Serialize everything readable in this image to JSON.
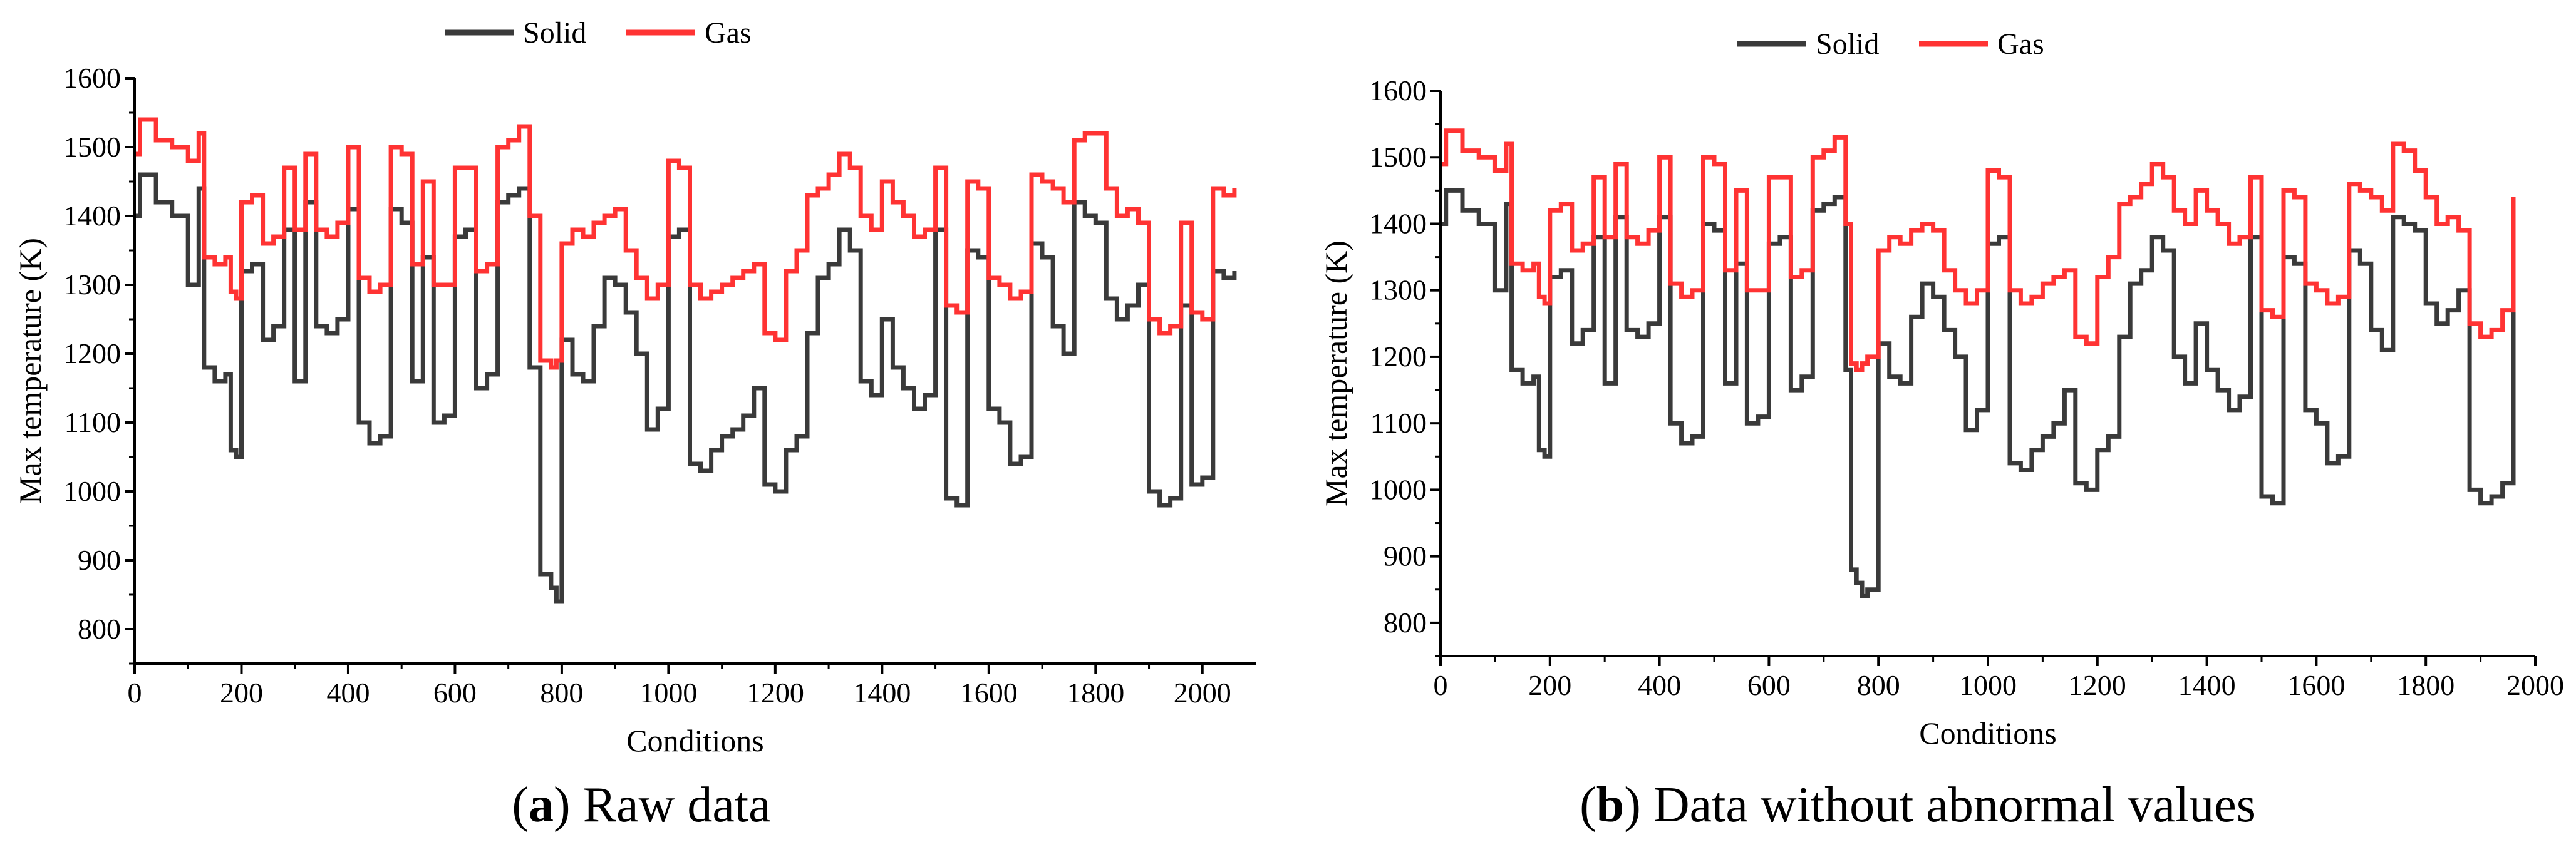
{
  "figure": {
    "captions": [
      {
        "open": "(",
        "letter": "a",
        "close": ")",
        "text": " Raw data"
      },
      {
        "open": "(",
        "letter": "b",
        "close": ")",
        "text": " Data without abnormal values"
      }
    ]
  },
  "colors": {
    "solid": "#3a3a3a",
    "gas": "#ff3333",
    "axis": "#000000"
  },
  "chart_data": [
    {
      "type": "line",
      "panel": "a",
      "title": "",
      "xlabel": "Conditions",
      "ylabel": "Max temperature (K)",
      "xlim": [
        0,
        2100
      ],
      "ylim": [
        750,
        1600
      ],
      "xticks": [
        0,
        200,
        400,
        600,
        800,
        1000,
        1200,
        1400,
        1600,
        1800,
        2000
      ],
      "yticks": [
        800,
        900,
        1000,
        1100,
        1200,
        1300,
        1400,
        1500,
        1600
      ],
      "legend": {
        "placement": "top-center",
        "entries": [
          "Solid",
          "Gas"
        ]
      },
      "series": [
        {
          "name": "Solid",
          "color": "#3a3a3a",
          "x": [
            0,
            10,
            40,
            70,
            100,
            120,
            130,
            150,
            170,
            180,
            190,
            200,
            220,
            240,
            260,
            280,
            300,
            320,
            340,
            360,
            380,
            400,
            420,
            440,
            460,
            480,
            500,
            520,
            540,
            560,
            580,
            600,
            620,
            640,
            660,
            680,
            700,
            720,
            740,
            760,
            780,
            790,
            800,
            820,
            840,
            860,
            880,
            900,
            920,
            940,
            960,
            980,
            1000,
            1020,
            1040,
            1060,
            1080,
            1100,
            1120,
            1140,
            1160,
            1180,
            1200,
            1220,
            1240,
            1260,
            1280,
            1300,
            1320,
            1340,
            1360,
            1380,
            1400,
            1420,
            1440,
            1460,
            1480,
            1500,
            1520,
            1540,
            1560,
            1580,
            1600,
            1620,
            1640,
            1660,
            1680,
            1700,
            1720,
            1740,
            1760,
            1780,
            1800,
            1820,
            1840,
            1860,
            1880,
            1900,
            1920,
            1940,
            1960,
            1980,
            2000,
            2020,
            2040,
            2060
          ],
          "values": [
            1400,
            1460,
            1420,
            1400,
            1300,
            1440,
            1180,
            1160,
            1170,
            1060,
            1050,
            1320,
            1330,
            1220,
            1240,
            1380,
            1160,
            1420,
            1240,
            1230,
            1250,
            1410,
            1100,
            1070,
            1080,
            1410,
            1390,
            1160,
            1340,
            1100,
            1110,
            1370,
            1380,
            1150,
            1170,
            1420,
            1430,
            1440,
            1180,
            880,
            860,
            840,
            1220,
            1170,
            1160,
            1240,
            1310,
            1300,
            1260,
            1200,
            1090,
            1120,
            1370,
            1380,
            1040,
            1030,
            1060,
            1080,
            1090,
            1110,
            1150,
            1010,
            1000,
            1060,
            1080,
            1230,
            1310,
            1330,
            1380,
            1350,
            1160,
            1140,
            1250,
            1180,
            1150,
            1120,
            1140,
            1380,
            990,
            980,
            1350,
            1340,
            1120,
            1100,
            1040,
            1050,
            1360,
            1340,
            1240,
            1200,
            1420,
            1400,
            1390,
            1280,
            1250,
            1270,
            1300,
            1000,
            980,
            990,
            1270,
            1010,
            1020,
            1320,
            1310,
            1320
          ]
        },
        {
          "name": "Gas",
          "color": "#ff3333",
          "x": [
            0,
            10,
            40,
            70,
            100,
            120,
            130,
            150,
            170,
            180,
            190,
            200,
            220,
            240,
            260,
            280,
            300,
            320,
            340,
            360,
            380,
            400,
            420,
            440,
            460,
            480,
            500,
            520,
            540,
            560,
            580,
            600,
            620,
            640,
            660,
            680,
            700,
            720,
            740,
            760,
            780,
            790,
            800,
            820,
            840,
            860,
            880,
            900,
            920,
            940,
            960,
            980,
            1000,
            1020,
            1040,
            1060,
            1080,
            1100,
            1120,
            1140,
            1160,
            1180,
            1200,
            1220,
            1240,
            1260,
            1280,
            1300,
            1320,
            1340,
            1360,
            1380,
            1400,
            1420,
            1440,
            1460,
            1480,
            1500,
            1520,
            1540,
            1560,
            1580,
            1600,
            1620,
            1640,
            1660,
            1680,
            1700,
            1720,
            1740,
            1760,
            1780,
            1800,
            1820,
            1840,
            1860,
            1880,
            1900,
            1920,
            1940,
            1960,
            1980,
            2000,
            2020,
            2040,
            2060
          ],
          "values": [
            1490,
            1540,
            1510,
            1500,
            1480,
            1520,
            1340,
            1330,
            1340,
            1290,
            1280,
            1420,
            1430,
            1360,
            1370,
            1470,
            1380,
            1490,
            1380,
            1370,
            1390,
            1500,
            1310,
            1290,
            1300,
            1500,
            1490,
            1330,
            1450,
            1300,
            1300,
            1470,
            1470,
            1320,
            1330,
            1500,
            1510,
            1530,
            1400,
            1190,
            1180,
            1190,
            1360,
            1380,
            1370,
            1390,
            1400,
            1410,
            1350,
            1310,
            1280,
            1300,
            1480,
            1470,
            1300,
            1280,
            1290,
            1300,
            1310,
            1320,
            1330,
            1230,
            1220,
            1320,
            1350,
            1430,
            1440,
            1460,
            1490,
            1470,
            1400,
            1380,
            1450,
            1420,
            1400,
            1370,
            1380,
            1470,
            1270,
            1260,
            1450,
            1440,
            1310,
            1300,
            1280,
            1290,
            1460,
            1450,
            1440,
            1420,
            1510,
            1520,
            1520,
            1440,
            1400,
            1410,
            1390,
            1250,
            1230,
            1240,
            1390,
            1260,
            1250,
            1440,
            1430,
            1440
          ]
        }
      ]
    },
    {
      "type": "line",
      "panel": "b",
      "title": "",
      "xlabel": "Conditions",
      "ylabel": "Max temperature (K)",
      "xlim": [
        0,
        2000
      ],
      "ylim": [
        750,
        1600
      ],
      "xticks": [
        0,
        200,
        400,
        600,
        800,
        1000,
        1200,
        1400,
        1600,
        1800,
        2000
      ],
      "yticks": [
        800,
        900,
        1000,
        1100,
        1200,
        1300,
        1400,
        1500,
        1600
      ],
      "legend": {
        "placement": "top-center",
        "entries": [
          "Solid",
          "Gas"
        ]
      },
      "series": [
        {
          "name": "Solid",
          "color": "#3a3a3a",
          "x": [
            0,
            10,
            40,
            70,
            100,
            120,
            130,
            150,
            170,
            180,
            190,
            200,
            220,
            240,
            260,
            280,
            300,
            320,
            340,
            360,
            380,
            400,
            420,
            440,
            460,
            480,
            500,
            520,
            540,
            560,
            580,
            600,
            620,
            640,
            660,
            680,
            700,
            720,
            740,
            750,
            760,
            770,
            780,
            800,
            820,
            840,
            860,
            880,
            900,
            920,
            940,
            960,
            980,
            1000,
            1020,
            1040,
            1060,
            1080,
            1100,
            1120,
            1140,
            1160,
            1180,
            1200,
            1220,
            1240,
            1260,
            1280,
            1300,
            1320,
            1340,
            1360,
            1380,
            1400,
            1420,
            1440,
            1460,
            1480,
            1500,
            1520,
            1540,
            1560,
            1580,
            1600,
            1620,
            1640,
            1660,
            1680,
            1700,
            1720,
            1740,
            1760,
            1780,
            1800,
            1820,
            1840,
            1860,
            1880,
            1900,
            1920,
            1940,
            1960
          ],
          "values": [
            1400,
            1450,
            1420,
            1400,
            1300,
            1430,
            1180,
            1160,
            1170,
            1060,
            1050,
            1320,
            1330,
            1220,
            1240,
            1380,
            1160,
            1410,
            1240,
            1230,
            1250,
            1410,
            1100,
            1070,
            1080,
            1400,
            1390,
            1160,
            1340,
            1100,
            1110,
            1370,
            1380,
            1150,
            1170,
            1420,
            1430,
            1440,
            1180,
            880,
            860,
            840,
            850,
            1220,
            1170,
            1160,
            1260,
            1310,
            1290,
            1240,
            1200,
            1090,
            1120,
            1370,
            1380,
            1040,
            1030,
            1060,
            1080,
            1100,
            1150,
            1010,
            1000,
            1060,
            1080,
            1230,
            1310,
            1330,
            1380,
            1360,
            1200,
            1160,
            1250,
            1180,
            1150,
            1120,
            1140,
            1380,
            990,
            980,
            1350,
            1340,
            1120,
            1100,
            1040,
            1050,
            1360,
            1340,
            1240,
            1210,
            1410,
            1400,
            1390,
            1280,
            1250,
            1270,
            1300,
            1000,
            980,
            990,
            1010,
            1310
          ]
        },
        {
          "name": "Gas",
          "color": "#ff3333",
          "x": [
            0,
            10,
            40,
            70,
            100,
            120,
            130,
            150,
            170,
            180,
            190,
            200,
            220,
            240,
            260,
            280,
            300,
            320,
            340,
            360,
            380,
            400,
            420,
            440,
            460,
            480,
            500,
            520,
            540,
            560,
            580,
            600,
            620,
            640,
            660,
            680,
            700,
            720,
            740,
            750,
            760,
            770,
            780,
            800,
            820,
            840,
            860,
            880,
            900,
            920,
            940,
            960,
            980,
            1000,
            1020,
            1040,
            1060,
            1080,
            1100,
            1120,
            1140,
            1160,
            1180,
            1200,
            1220,
            1240,
            1260,
            1280,
            1300,
            1320,
            1340,
            1360,
            1380,
            1400,
            1420,
            1440,
            1460,
            1480,
            1500,
            1520,
            1540,
            1560,
            1580,
            1600,
            1620,
            1640,
            1660,
            1680,
            1700,
            1720,
            1740,
            1760,
            1780,
            1800,
            1820,
            1840,
            1860,
            1880,
            1900,
            1920,
            1940,
            1960
          ],
          "values": [
            1490,
            1540,
            1510,
            1500,
            1480,
            1520,
            1340,
            1330,
            1340,
            1290,
            1280,
            1420,
            1430,
            1360,
            1370,
            1470,
            1380,
            1490,
            1380,
            1370,
            1390,
            1500,
            1310,
            1290,
            1300,
            1500,
            1490,
            1330,
            1450,
            1300,
            1300,
            1470,
            1470,
            1320,
            1330,
            1500,
            1510,
            1530,
            1400,
            1190,
            1180,
            1190,
            1200,
            1360,
            1380,
            1370,
            1390,
            1400,
            1390,
            1330,
            1300,
            1280,
            1300,
            1480,
            1470,
            1300,
            1280,
            1290,
            1310,
            1320,
            1330,
            1230,
            1220,
            1320,
            1350,
            1430,
            1440,
            1460,
            1490,
            1470,
            1420,
            1400,
            1450,
            1420,
            1400,
            1370,
            1380,
            1470,
            1270,
            1260,
            1450,
            1440,
            1310,
            1300,
            1280,
            1290,
            1460,
            1450,
            1440,
            1420,
            1520,
            1510,
            1480,
            1440,
            1400,
            1410,
            1390,
            1250,
            1230,
            1240,
            1270,
            1440
          ]
        }
      ]
    }
  ]
}
